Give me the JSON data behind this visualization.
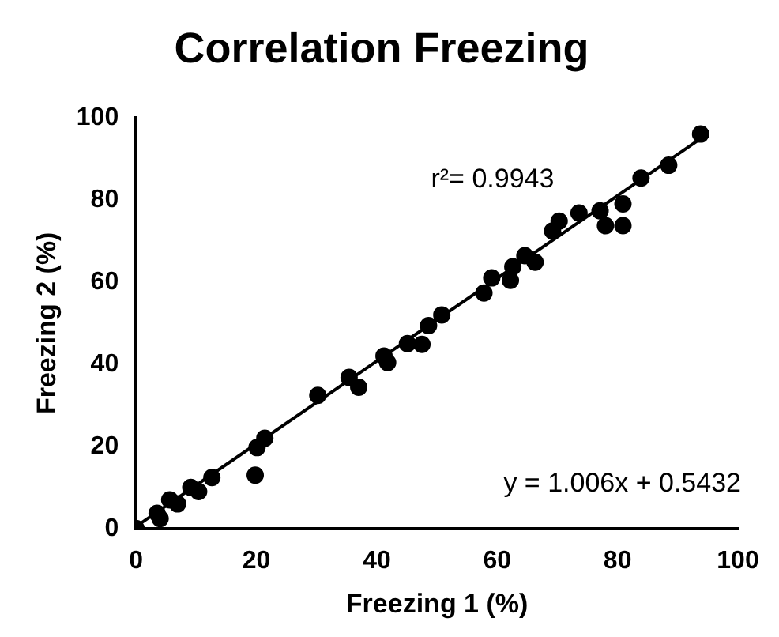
{
  "chart_data": {
    "type": "scatter",
    "title": "Correlation Freezing",
    "xlabel": "Freezing 1 (%)",
    "ylabel": "Freezing 2 (%)",
    "xlim": [
      0,
      100
    ],
    "xticks": [
      0,
      20,
      40,
      60,
      80,
      100
    ],
    "ylim": [
      0,
      100
    ],
    "yticks": [
      0,
      20,
      40,
      60,
      80,
      100
    ],
    "grid": false,
    "legend": false,
    "series": [
      {
        "color": "#000000",
        "marker": "circle",
        "x": [
          0,
          3.5,
          4,
          5.6,
          6.9,
          9.1,
          10.4,
          12.6,
          19.8,
          20.1,
          21.4,
          30.2,
          35.4,
          37,
          41.2,
          41.8,
          45.1,
          47.5,
          48.6,
          50.8,
          57.8,
          59.1,
          62.2,
          62.6,
          64.6,
          66.3,
          69.2,
          70.3,
          73.6,
          77.1,
          78,
          80.9,
          80.9,
          83.9,
          88.5,
          93.8
        ],
        "values": [
          0,
          3.7,
          2.4,
          7,
          6,
          10,
          9,
          12.4,
          13,
          19.7,
          22,
          32.4,
          36.8,
          34.4,
          42,
          40.4,
          45,
          44.8,
          49.4,
          52,
          57.3,
          61,
          60.4,
          63.7,
          66.4,
          64.8,
          72.4,
          74.8,
          76.8,
          77.3,
          73.7,
          73.7,
          79,
          85.3,
          88.4,
          96
        ]
      },
      {
        "type": "line",
        "color": "#000000",
        "marker": "none",
        "line_style": "solid",
        "x": [
          0,
          93.8
        ],
        "values": [
          0.5,
          94.9
        ]
      }
    ],
    "annotations": [
      "r²= 0.9943",
      "y = 1.006x + 0.5432"
    ]
  }
}
